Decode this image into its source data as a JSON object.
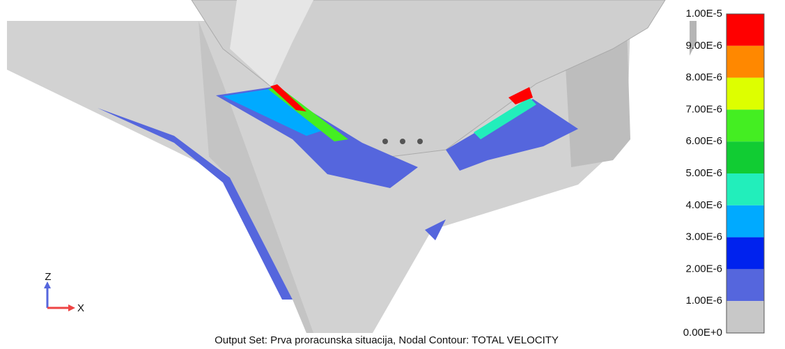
{
  "legend": {
    "labels": [
      "1.00E-5",
      "9.00E-6",
      "8.00E-6",
      "7.00E-6",
      "6.00E-6",
      "5.00E-6",
      "4.00E-6",
      "3.00E-6",
      "2.00E-6",
      "1.00E-6",
      "0.00E+0"
    ],
    "colors": [
      "#ff0000",
      "#ff8800",
      "#ddff00",
      "#44ee22",
      "#11cc33",
      "#22eebb",
      "#00aaff",
      "#0022ee",
      "#5566dd",
      "#c8c8c8"
    ]
  },
  "triad": {
    "z": "Z",
    "x": "X"
  },
  "caption": "Output Set: Prva proracunska situacija, Nodal Contour: TOTAL VELOCITY"
}
